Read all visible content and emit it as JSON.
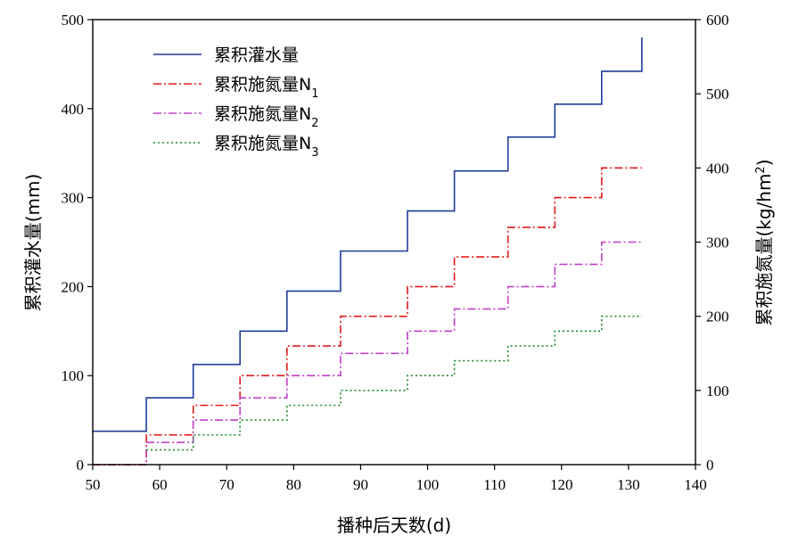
{
  "chart_data": {
    "type": "line",
    "step": true,
    "xlabel": "播种后天数(d)",
    "ylabel_left": "累积灌水量(mm)",
    "ylabel_right": {
      "base": "累积施氮量(kg/hm",
      "sup": "2",
      "end": ")"
    },
    "xlim": [
      50,
      140
    ],
    "ylim_left": [
      0,
      500
    ],
    "ylim_right": [
      0,
      600
    ],
    "x_ticks": [
      50,
      60,
      70,
      80,
      90,
      100,
      110,
      120,
      130,
      140
    ],
    "y_ticks_left": [
      0,
      100,
      200,
      300,
      400,
      500
    ],
    "y_ticks_right": [
      0,
      100,
      200,
      300,
      400,
      500,
      600
    ],
    "legend_position": "top-left",
    "series": [
      {
        "name": "累积灌水量",
        "name_base": "累积灌水量",
        "name_sub": "",
        "axis": "left",
        "color": "#1f3c99",
        "dash": "solid",
        "x": [
          50,
          58,
          58,
          65,
          65,
          72,
          72,
          79,
          79,
          87,
          87,
          97,
          97,
          104,
          104,
          112,
          112,
          119,
          119,
          126,
          126,
          132,
          132
        ],
        "y": [
          37.5,
          37.5,
          75,
          75,
          112.5,
          112.5,
          150,
          150,
          195,
          195,
          240,
          240,
          285,
          285,
          330,
          330,
          368,
          368,
          405,
          405,
          442,
          442,
          480
        ]
      },
      {
        "name": "累积施氮量N1",
        "name_base": "累积施氮量N",
        "name_sub": "1",
        "axis": "right",
        "color": "#e31a1c",
        "dash": "dashdot",
        "x": [
          50,
          58,
          58,
          65,
          65,
          72,
          72,
          79,
          79,
          87,
          87,
          97,
          97,
          104,
          104,
          112,
          112,
          119,
          119,
          126,
          126,
          132
        ],
        "y": [
          0,
          0,
          40,
          40,
          80,
          80,
          120,
          120,
          160,
          160,
          200,
          200,
          240,
          240,
          280,
          280,
          320,
          320,
          360,
          360,
          400,
          400
        ]
      },
      {
        "name": "累积施氮量N2",
        "name_base": "累积施氮量N",
        "name_sub": "2",
        "axis": "right",
        "color": "#c040c8",
        "dash": "dashdot",
        "x": [
          50,
          58,
          58,
          65,
          65,
          72,
          72,
          79,
          79,
          87,
          87,
          97,
          97,
          104,
          104,
          112,
          112,
          119,
          119,
          126,
          126,
          132
        ],
        "y": [
          0,
          0,
          30,
          30,
          60,
          60,
          90,
          90,
          120,
          120,
          150,
          150,
          180,
          180,
          210,
          210,
          240,
          240,
          270,
          270,
          300,
          300
        ]
      },
      {
        "name": "累积施氮量N3",
        "name_base": "累积施氮量N",
        "name_sub": "3",
        "axis": "right",
        "color": "#1a8a2a",
        "dash": "dotted",
        "x": [
          58,
          65,
          65,
          72,
          72,
          79,
          79,
          87,
          87,
          97,
          97,
          104,
          104,
          112,
          112,
          119,
          119,
          126,
          126,
          132
        ],
        "y": [
          20,
          20,
          40,
          40,
          60,
          60,
          80,
          80,
          100,
          100,
          120,
          120,
          140,
          140,
          160,
          160,
          180,
          180,
          200,
          200
        ]
      }
    ]
  }
}
